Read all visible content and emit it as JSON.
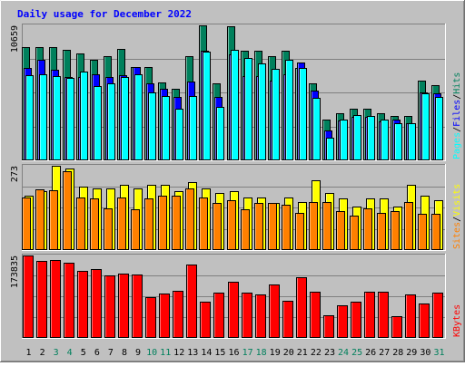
{
  "title": "Daily usage for December 2022",
  "colors": {
    "background": "#c0c0c0",
    "title": "#0000ff",
    "hits": "#00805c",
    "files": "#0000ff",
    "pages": "#00ffff",
    "visits": "#ffff00",
    "sites": "#ff8000",
    "kbytes": "#ff0000",
    "weekend_label": "#00805c",
    "weekday_label": "#000000"
  },
  "chart_data": [
    {
      "type": "bar",
      "name": "hits-files-pages",
      "ymax_label": "10659",
      "ylim": [
        0,
        10659
      ],
      "axis_label_parts": [
        "Pages",
        "/",
        "Files",
        "/",
        "Hits"
      ],
      "categories": [
        "1",
        "2",
        "3",
        "4",
        "5",
        "6",
        "7",
        "8",
        "9",
        "10",
        "11",
        "12",
        "13",
        "14",
        "15",
        "16",
        "17",
        "18",
        "19",
        "20",
        "21",
        "22",
        "23",
        "24",
        "25",
        "26",
        "27",
        "28",
        "29",
        "30",
        "31"
      ],
      "series": [
        {
          "name": "Hits",
          "values": [
            8900,
            8900,
            8900,
            8750,
            8400,
            7950,
            8200,
            8800,
            7350,
            7350,
            6150,
            5650,
            8200,
            10659,
            6050,
            10600,
            8650,
            8650,
            8200,
            8650,
            7300,
            6050,
            3200,
            3650,
            4000,
            4050,
            3650,
            3450,
            3450,
            6300,
            5900
          ]
        },
        {
          "name": "Files",
          "values": [
            7300,
            7950,
            7150,
            6550,
            6550,
            6800,
            6550,
            6700,
            7350,
            6050,
            5650,
            4950,
            6200,
            8650,
            5000,
            8350,
            6650,
            6650,
            6300,
            6750,
            7700,
            5500,
            2300,
            3100,
            3350,
            3400,
            3050,
            3150,
            2900,
            5350,
            5250
          ]
        },
        {
          "name": "Pages",
          "values": [
            6700,
            6750,
            6650,
            6500,
            6950,
            5800,
            6050,
            6550,
            6800,
            5300,
            5050,
            4050,
            5050,
            8550,
            4150,
            8700,
            8100,
            7650,
            7200,
            7900,
            7300,
            4900,
            1750,
            3200,
            3500,
            3450,
            3150,
            2900,
            2900,
            5250,
            4950
          ]
        }
      ]
    },
    {
      "type": "bar",
      "name": "visits-sites",
      "ymax_label": "273",
      "ylim": [
        0,
        273
      ],
      "axis_label_parts": [
        "Sites",
        "/",
        "Visits"
      ],
      "categories": [
        "1",
        "2",
        "3",
        "4",
        "5",
        "6",
        "7",
        "8",
        "9",
        "10",
        "11",
        "12",
        "13",
        "14",
        "15",
        "16",
        "17",
        "18",
        "19",
        "20",
        "21",
        "22",
        "23",
        "24",
        "25",
        "26",
        "27",
        "28",
        "29",
        "30",
        "31"
      ],
      "series": [
        {
          "name": "Visits",
          "values": [
            175,
            190,
            273,
            265,
            205,
            200,
            200,
            210,
            200,
            210,
            210,
            190,
            220,
            200,
            185,
            190,
            170,
            170,
            150,
            170,
            155,
            225,
            185,
            165,
            140,
            165,
            165,
            140,
            210,
            175,
            160
          ]
        },
        {
          "name": "Sites",
          "values": [
            170,
            195,
            193,
            255,
            170,
            165,
            135,
            170,
            130,
            165,
            175,
            175,
            200,
            170,
            150,
            160,
            130,
            150,
            150,
            145,
            120,
            155,
            155,
            125,
            110,
            135,
            120,
            125,
            155,
            115,
            115
          ]
        }
      ]
    },
    {
      "type": "bar",
      "name": "kbytes",
      "ymax_label": "173835",
      "ylim": [
        0,
        173835
      ],
      "axis_label_parts": [
        "KBytes"
      ],
      "categories": [
        "1",
        "2",
        "3",
        "4",
        "5",
        "6",
        "7",
        "8",
        "9",
        "10",
        "11",
        "12",
        "13",
        "14",
        "15",
        "16",
        "17",
        "18",
        "19",
        "20",
        "21",
        "22",
        "23",
        "24",
        "25",
        "26",
        "27",
        "28",
        "29",
        "30",
        "31"
      ],
      "series": [
        {
          "name": "KBytes",
          "values": [
            173835,
            163000,
            165000,
            158500,
            141000,
            145000,
            132000,
            135000,
            133000,
            85000,
            93000,
            99000,
            155000,
            75000,
            95000,
            117000,
            95000,
            90000,
            112000,
            77000,
            128000,
            96000,
            47000,
            68000,
            76000,
            96000,
            96000,
            45000,
            91000,
            71000,
            94000
          ]
        }
      ]
    }
  ],
  "day_labels": [
    "1",
    "2",
    "3",
    "4",
    "5",
    "6",
    "7",
    "8",
    "9",
    "10",
    "11",
    "12",
    "13",
    "14",
    "15",
    "16",
    "17",
    "18",
    "19",
    "20",
    "21",
    "22",
    "23",
    "24",
    "25",
    "26",
    "27",
    "28",
    "29",
    "30",
    "31"
  ],
  "weekend_days": [
    3,
    4,
    10,
    11,
    17,
    18,
    24,
    25,
    31
  ]
}
